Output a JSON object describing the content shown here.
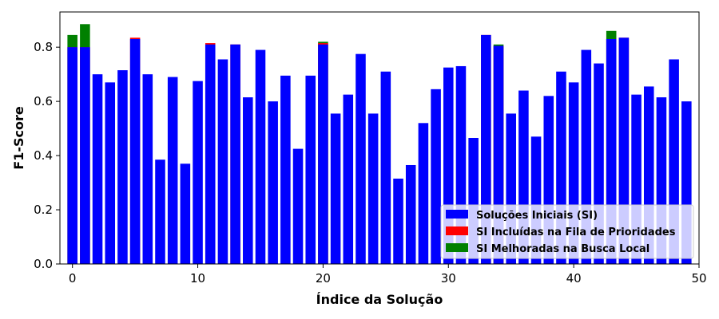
{
  "chart_data": {
    "type": "bar",
    "xlabel": "Índice da Solução",
    "ylabel": "F1-Score",
    "xlim": [
      -1,
      50
    ],
    "ylim": [
      0,
      0.93
    ],
    "xticks": [
      0,
      10,
      20,
      30,
      40,
      50
    ],
    "yticks": [
      0.0,
      0.2,
      0.4,
      0.6,
      0.8
    ],
    "x": [
      0,
      1,
      2,
      3,
      4,
      5,
      6,
      7,
      8,
      9,
      10,
      11,
      12,
      13,
      14,
      15,
      16,
      17,
      18,
      19,
      20,
      21,
      22,
      23,
      24,
      25,
      26,
      27,
      28,
      29,
      30,
      31,
      32,
      33,
      34,
      35,
      36,
      37,
      38,
      39,
      40,
      41,
      42,
      43,
      44,
      45,
      46,
      47,
      48,
      49
    ],
    "series": [
      {
        "name": "Soluções Iniciais (SI)",
        "color": "#0000ff",
        "values": [
          0.8,
          0.8,
          0.7,
          0.67,
          0.715,
          0.83,
          0.7,
          0.385,
          0.69,
          0.37,
          0.675,
          0.81,
          0.755,
          0.81,
          0.615,
          0.79,
          0.6,
          0.695,
          0.425,
          0.695,
          0.81,
          0.555,
          0.625,
          0.775,
          0.555,
          0.71,
          0.315,
          0.365,
          0.52,
          0.645,
          0.725,
          0.73,
          0.465,
          0.845,
          0.805,
          0.555,
          0.64,
          0.47,
          0.62,
          0.71,
          0.67,
          0.79,
          0.74,
          0.83,
          0.835,
          0.625,
          0.655,
          0.615,
          0.755,
          0.6
        ]
      },
      {
        "name": "SI Incluídas na Fila de Prioridades",
        "color": "#ff0000",
        "values": [
          0.8,
          0.8,
          null,
          null,
          null,
          0.835,
          null,
          null,
          null,
          null,
          null,
          0.815,
          null,
          0.81,
          null,
          null,
          null,
          null,
          null,
          null,
          0.815,
          null,
          null,
          null,
          null,
          null,
          null,
          null,
          null,
          null,
          null,
          null,
          null,
          0.845,
          0.805,
          null,
          null,
          null,
          null,
          null,
          null,
          null,
          null,
          0.83,
          0.835,
          null,
          null,
          null,
          null,
          null
        ]
      },
      {
        "name": "SI Melhoradas na Busca Local",
        "color": "#008000",
        "values": [
          0.845,
          0.885,
          null,
          null,
          null,
          null,
          null,
          null,
          null,
          null,
          null,
          null,
          null,
          null,
          null,
          null,
          null,
          null,
          null,
          null,
          0.82,
          null,
          null,
          null,
          null,
          null,
          null,
          null,
          null,
          null,
          null,
          null,
          null,
          null,
          0.81,
          null,
          null,
          null,
          null,
          null,
          null,
          null,
          null,
          0.86,
          null,
          null,
          null,
          null,
          null,
          null
        ]
      }
    ],
    "legend_position": "bottom-right",
    "grid": false
  }
}
